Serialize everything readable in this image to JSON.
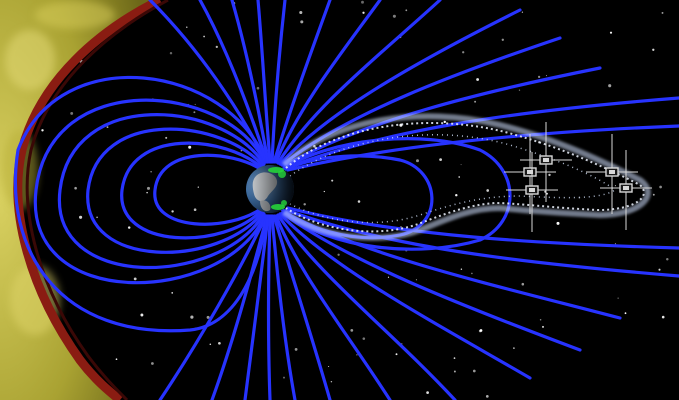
{
  "diagram": {
    "colors": {
      "space": "#000000",
      "solar_wind": "#c9c24a",
      "bow_shock": "#8a1c12",
      "field_line": "#2733ff",
      "plasma_sheet": "#cfe0ff",
      "earth_ocean": "#2f5f9a",
      "earth_land": "#e8e8e8",
      "aurora": "#26d43a",
      "satellite": "#d8d8d8"
    },
    "elements": [
      {
        "id": "solar-wind",
        "icon": "solar-wind-region"
      },
      {
        "id": "bow-shock",
        "icon": "bow-shock-curve"
      },
      {
        "id": "dayside-field-lines",
        "icon": "closed-dipole-field-lines"
      },
      {
        "id": "magnetotail-field-lines",
        "icon": "stretched-tail-field-lines"
      },
      {
        "id": "plasma-sheet",
        "icon": "particle-stream"
      },
      {
        "id": "earth",
        "icon": "earth-globe"
      },
      {
        "id": "aurora",
        "icon": "auroral-oval"
      },
      {
        "id": "satellites",
        "icon": "satellite-constellation",
        "count": 5
      }
    ]
  }
}
